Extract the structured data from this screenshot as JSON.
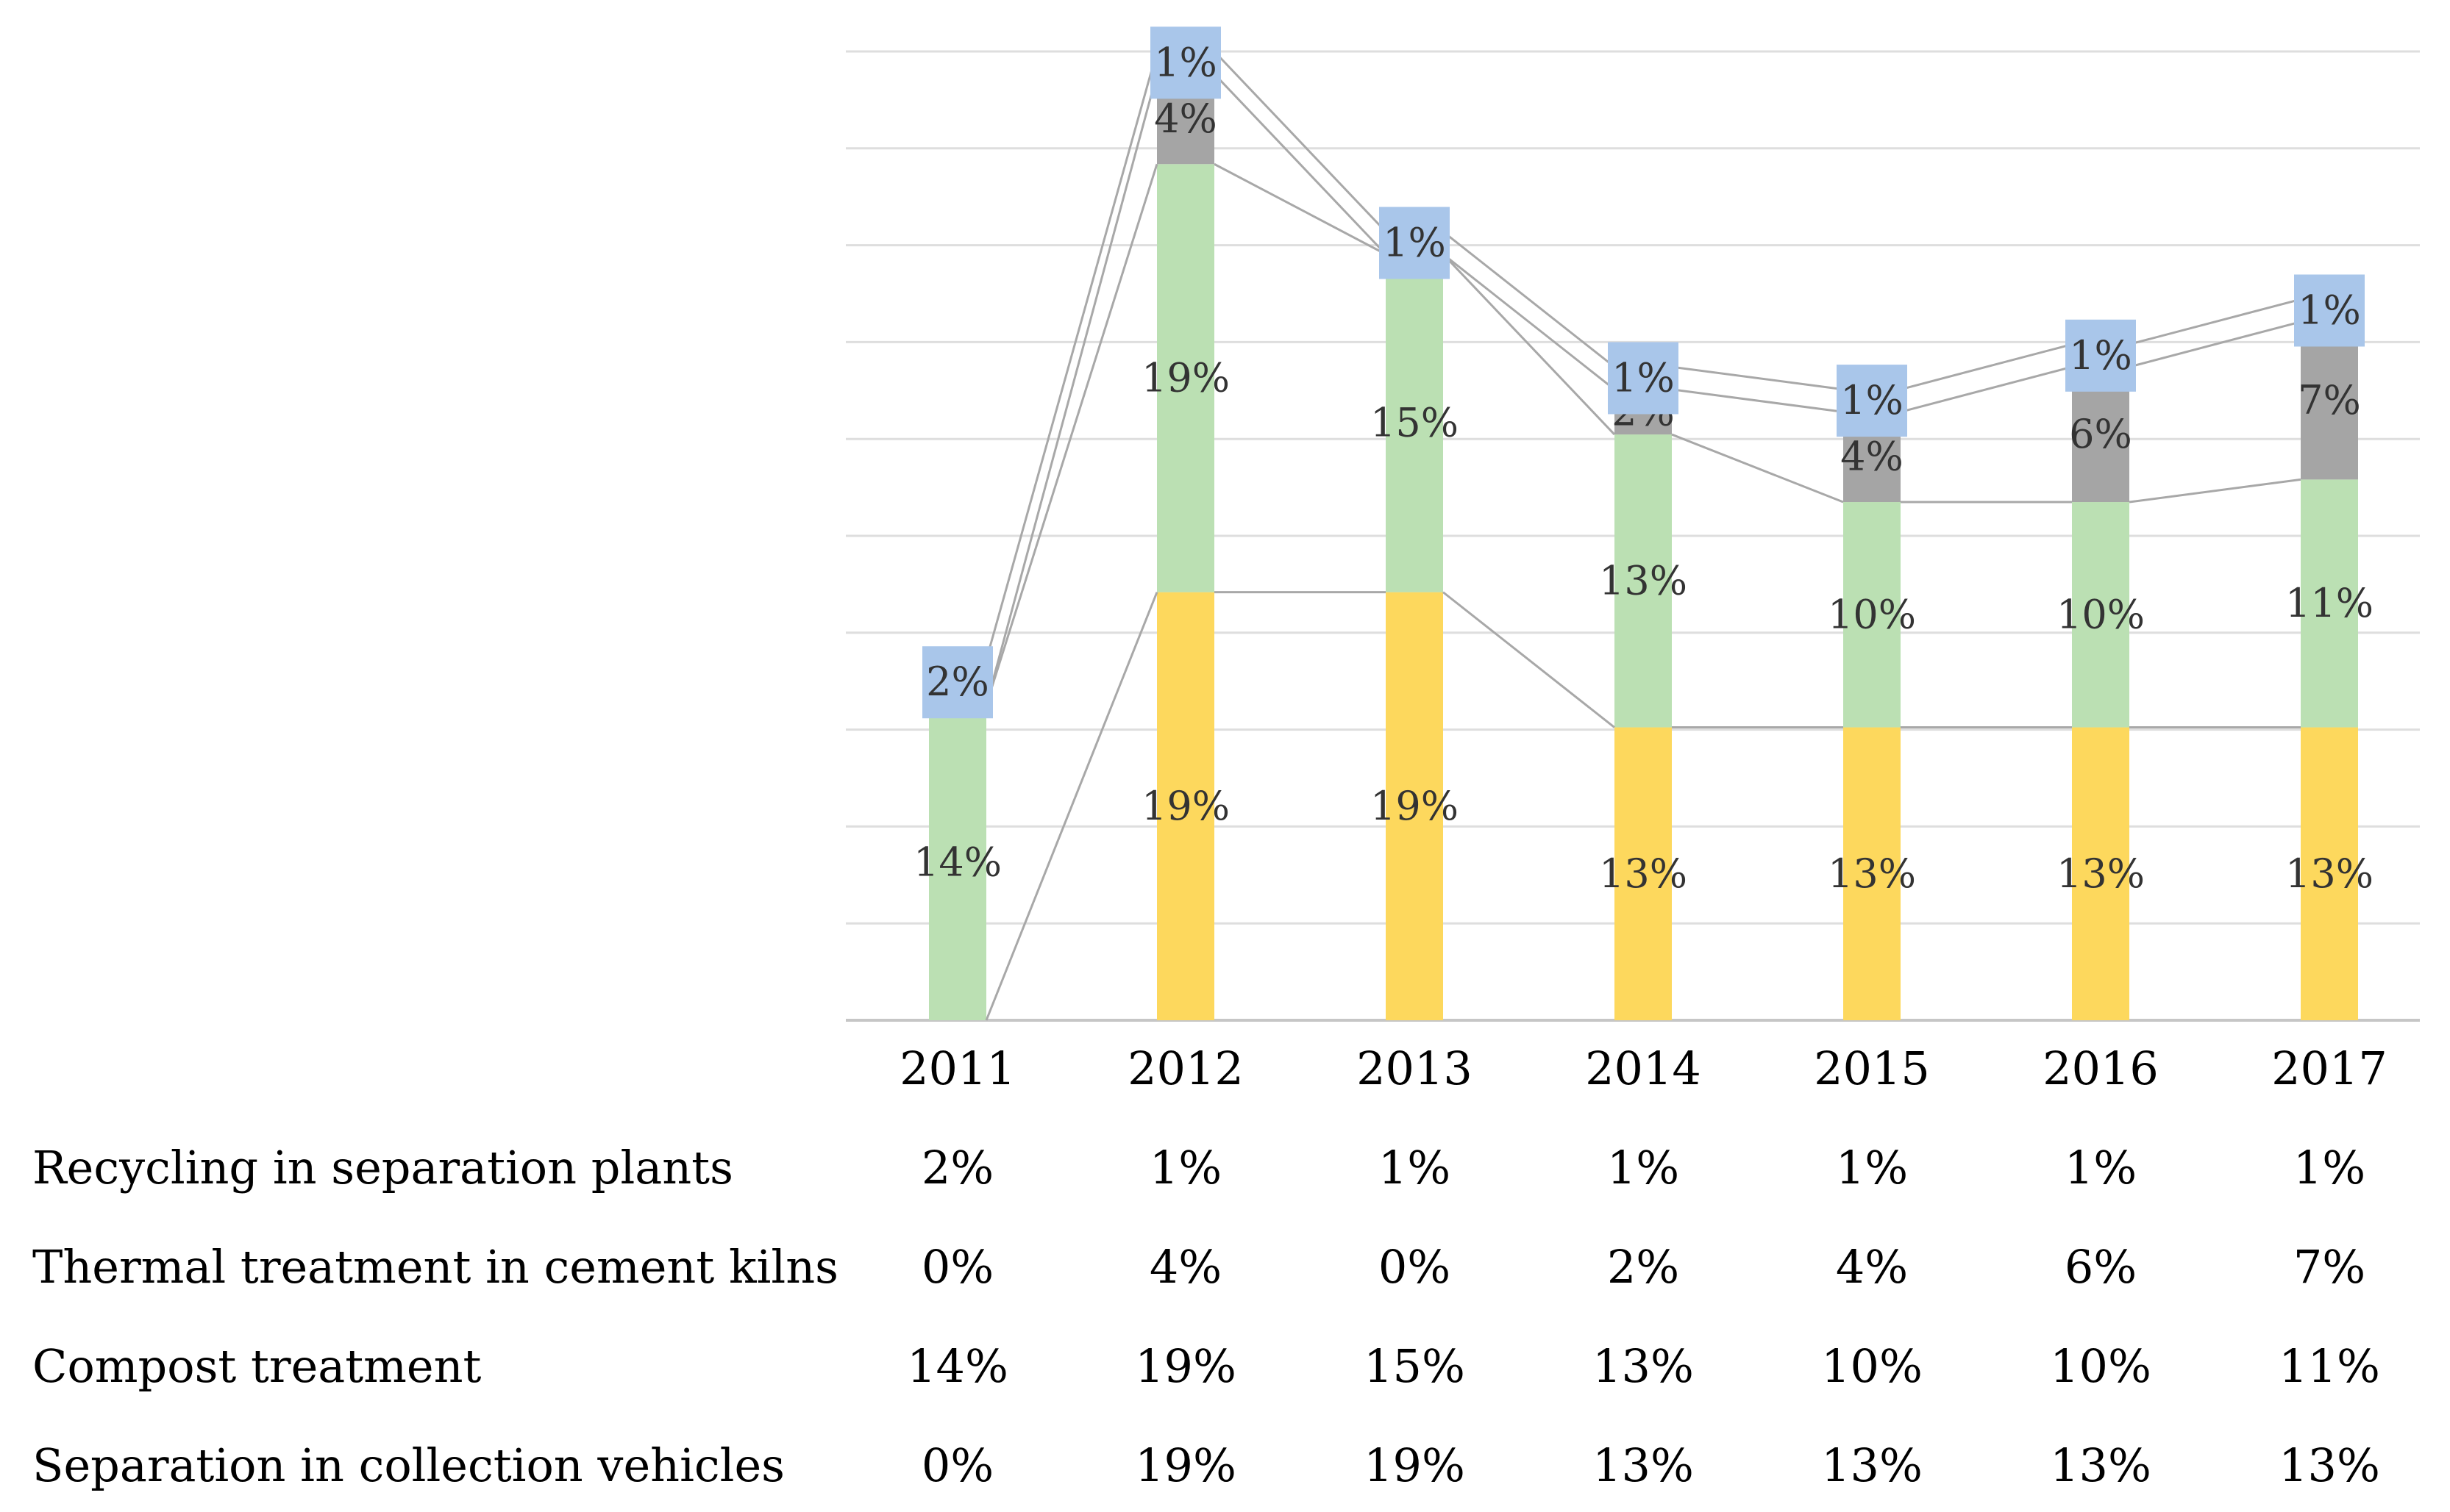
{
  "chart_data": {
    "type": "bar",
    "stacked": true,
    "categories": [
      "2011",
      "2012",
      "2013",
      "2014",
      "2015",
      "2016",
      "2017"
    ],
    "series": [
      {
        "name": "Separation in collection vehicles",
        "color": "#FDD85D",
        "values": [
          0,
          19,
          19,
          13,
          13,
          13,
          13
        ],
        "labels": [
          "0%",
          "19%",
          "19%",
          "13%",
          "13%",
          "13%",
          "13%"
        ]
      },
      {
        "name": "Compost treatment",
        "color": "#BBE0B3",
        "values": [
          14,
          19,
          15,
          13,
          10,
          10,
          11
        ],
        "labels": [
          "14%",
          "19%",
          "15%",
          "13%",
          "10%",
          "10%",
          "11%"
        ]
      },
      {
        "name": "Thermal treatment in cement kilns",
        "color": "#A5A5A5",
        "values": [
          0,
          4,
          0,
          2,
          4,
          6,
          7
        ],
        "labels": [
          "0%",
          "4%",
          "0%",
          "2%",
          "4%",
          "6%",
          "7%"
        ]
      },
      {
        "name": "Recycling in separation plants",
        "color": "#A9C6EA",
        "values": [
          2,
          1,
          1,
          1,
          1,
          1,
          1
        ],
        "labels": [
          "2%",
          "1%",
          "1%",
          "1%",
          "1%",
          "1%",
          "1%"
        ]
      }
    ],
    "table_row_order": [
      3,
      2,
      1,
      0
    ],
    "series_lines": true,
    "grid": true,
    "xlabel": "",
    "ylabel": "",
    "title": ""
  }
}
